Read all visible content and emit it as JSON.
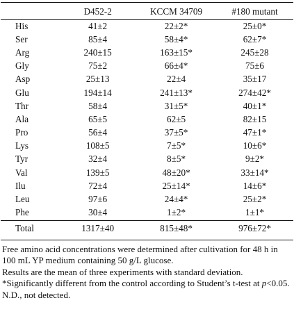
{
  "table": {
    "columns": [
      "",
      "D452-2",
      "KCCM 34709",
      "#180 mutant"
    ],
    "rows": [
      {
        "name": "His",
        "v": [
          "41±2",
          "22±2*",
          "25±0*"
        ]
      },
      {
        "name": "Ser",
        "v": [
          "85±4",
          "58±4*",
          "62±7*"
        ]
      },
      {
        "name": "Arg",
        "v": [
          "240±15",
          "163±15*",
          "245±28"
        ]
      },
      {
        "name": "Gly",
        "v": [
          "75±2",
          "66±4*",
          "75±6"
        ]
      },
      {
        "name": "Asp",
        "v": [
          "25±13",
          "22±4",
          "35±17"
        ]
      },
      {
        "name": "Glu",
        "v": [
          "194±14",
          "241±13*",
          "274±42*"
        ]
      },
      {
        "name": "Thr",
        "v": [
          "58±4",
          "31±5*",
          "40±1*"
        ]
      },
      {
        "name": "Ala",
        "v": [
          "65±5",
          "62±5",
          "82±15"
        ]
      },
      {
        "name": "Pro",
        "v": [
          "56±4",
          "37±5*",
          "47±1*"
        ]
      },
      {
        "name": "Lys",
        "v": [
          "108±5",
          "7±5*",
          "10±6*"
        ]
      },
      {
        "name": "Tyr",
        "v": [
          "32±4",
          "8±5*",
          "9±2*"
        ]
      },
      {
        "name": "Val",
        "v": [
          "139±5",
          "48±20*",
          "33±14*"
        ]
      },
      {
        "name": "Ilu",
        "v": [
          "72±4",
          "25±14*",
          "14±6*"
        ]
      },
      {
        "name": "Leu",
        "v": [
          "97±6",
          "24±4*",
          "25±2*"
        ]
      },
      {
        "name": "Phe",
        "v": [
          "30±4",
          "1±2*",
          "1±1*"
        ]
      }
    ],
    "total": {
      "name": "Total",
      "v": [
        "1317±40",
        "815±48*",
        "976±72*"
      ]
    }
  },
  "notes": {
    "line1": "Free amino acid concentrations were determined after cultivation for 48 h in 100 mL YP medium containing 50 g/L glucose.",
    "line2": "Results are the mean of three experiments with standard deviation.",
    "line3_a": "*Significantly different from the control according to Student’s t-test at ",
    "line3_p": "p",
    "line3_b": "<0.05.",
    "line4": "N.D., not detected."
  }
}
